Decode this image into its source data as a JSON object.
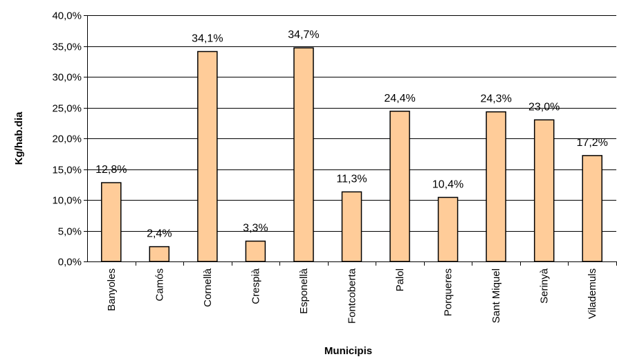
{
  "chart_data": {
    "type": "bar",
    "title": "",
    "xlabel": "Municipis",
    "ylabel": "Kg/hab.dia",
    "ylim": [
      0,
      40
    ],
    "yticks": [
      0,
      5,
      10,
      15,
      20,
      25,
      30,
      35,
      40
    ],
    "ytick_labels": [
      "0,0%",
      "5,0%",
      "10,0%",
      "15,0%",
      "20,0%",
      "25,0%",
      "30,0%",
      "35,0%",
      "40,0%"
    ],
    "grid": "horizontal",
    "legend": "none",
    "categories": [
      "Banyoles",
      "Camós",
      "Cornellà",
      "Crespià",
      "Esponellà",
      "Fontcoberta",
      "Palol",
      "Porqueres",
      "Sant Miquel",
      "Serinyà",
      "Vilademuls"
    ],
    "values": [
      12.8,
      2.4,
      34.1,
      3.3,
      34.7,
      11.3,
      24.4,
      10.4,
      24.3,
      23.0,
      17.2
    ],
    "data_labels": [
      "12,8%",
      "2,4%",
      "34,1%",
      "3,3%",
      "34,7%",
      "11,3%",
      "24,4%",
      "10,4%",
      "24,3%",
      "23,0%",
      "17,2%"
    ],
    "colors": {
      "bar_fill": "#FFCC99",
      "bar_stroke": "#000000",
      "grid": "#000000",
      "axis": "#000000"
    }
  }
}
